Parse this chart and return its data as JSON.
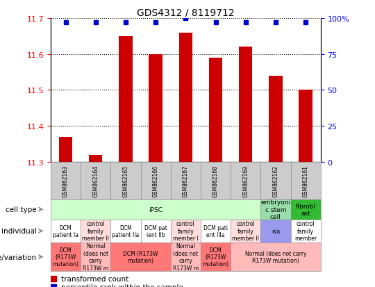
{
  "title": "GDS4312 / 8119712",
  "samples": [
    "GSM862163",
    "GSM862164",
    "GSM862165",
    "GSM862166",
    "GSM862167",
    "GSM862168",
    "GSM862169",
    "GSM862162",
    "GSM862161"
  ],
  "bar_values": [
    11.37,
    11.32,
    11.65,
    11.6,
    11.66,
    11.59,
    11.62,
    11.54,
    11.5
  ],
  "dot_values": [
    97,
    97,
    97,
    97,
    100,
    97,
    97,
    97,
    97
  ],
  "ylim_left": [
    11.3,
    11.7
  ],
  "ylim_right": [
    0,
    100
  ],
  "yticks_left": [
    11.3,
    11.4,
    11.5,
    11.6,
    11.7
  ],
  "yticks_right": [
    0,
    25,
    50,
    75,
    100
  ],
  "bar_color": "#cc0000",
  "dot_color": "#0000cc",
  "bar_bottom": 11.3,
  "cell_type_cells": [
    {
      "start": 0,
      "end": 7,
      "color": "#ccffcc",
      "label": "iPSC"
    },
    {
      "start": 7,
      "end": 8,
      "color": "#99ddaa",
      "label": "embryoni\nc stem\ncell"
    },
    {
      "start": 8,
      "end": 9,
      "color": "#33bb33",
      "label": "fibrobl\nast"
    }
  ],
  "individual_cells": [
    {
      "label": "DCM\npatient Ia",
      "color": "#ffffff",
      "start": 0,
      "end": 1
    },
    {
      "label": "control\nfamily\nmember II",
      "color": "#ffdddd",
      "start": 1,
      "end": 2
    },
    {
      "label": "DCM\npatient IIa",
      "color": "#ffffff",
      "start": 2,
      "end": 3
    },
    {
      "label": "DCM pat\nient IIb",
      "color": "#ffffff",
      "start": 3,
      "end": 4
    },
    {
      "label": "control\nfamily\nmember I",
      "color": "#ffdddd",
      "start": 4,
      "end": 5
    },
    {
      "label": "DCM pati\nent IIIa",
      "color": "#ffffff",
      "start": 5,
      "end": 6
    },
    {
      "label": "control\nfamily\nmember II",
      "color": "#ffdddd",
      "start": 6,
      "end": 7
    },
    {
      "label": "n/a",
      "color": "#9999ee",
      "start": 7,
      "end": 8
    },
    {
      "label": "control\nfamily\nmember",
      "color": "#ffffff",
      "start": 8,
      "end": 9
    }
  ],
  "genotype_cells": [
    {
      "label": "DCM\n(R173W\nmutation)",
      "color": "#ff7777",
      "start": 0,
      "end": 1
    },
    {
      "label": "Normal\n(does not\ncarry\nR173W m",
      "color": "#ffbbbb",
      "start": 1,
      "end": 2
    },
    {
      "label": "DCM (R173W\nmutation)",
      "color": "#ff7777",
      "start": 2,
      "end": 4
    },
    {
      "label": "Normal\n(does not\ncarry\nR173W m",
      "color": "#ffbbbb",
      "start": 4,
      "end": 5
    },
    {
      "label": "DCM\n(R173W\nmutation)",
      "color": "#ff7777",
      "start": 5,
      "end": 6
    },
    {
      "label": "Normal (does not carry\nR173W mutation)",
      "color": "#ffbbbb",
      "start": 6,
      "end": 9
    }
  ],
  "legend_items": [
    {
      "color": "#cc0000",
      "label": "transformed count"
    },
    {
      "color": "#0000cc",
      "label": "percentile rank within the sample"
    }
  ],
  "sample_cell_color": "#cccccc"
}
